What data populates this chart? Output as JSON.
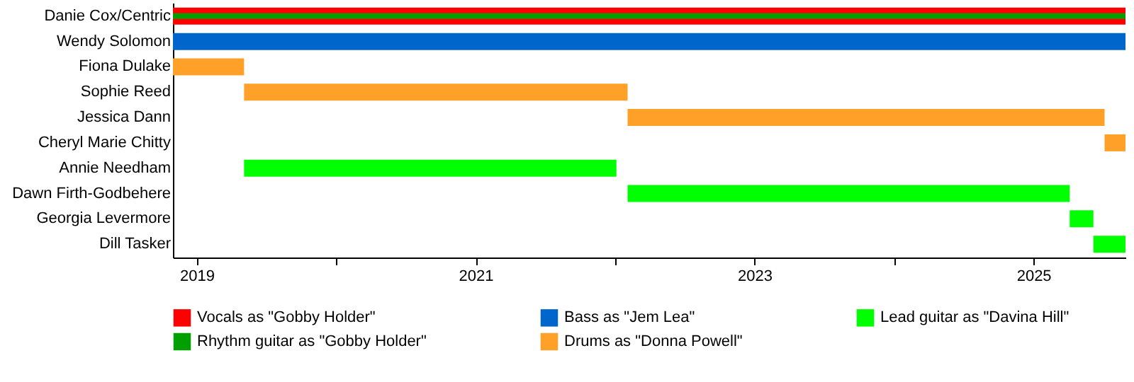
{
  "chart_data": {
    "type": "bar",
    "orientation": "horizontal",
    "legend": "bottom",
    "categories": [
      "Danie Cox/Centric",
      "Wendy Solomon",
      "Fiona Dulake",
      "Sophie Reed",
      "Jessica Dann",
      "Cheryl Marie Chitty",
      "Annie Needham",
      "Dawn Firth-Godbehere",
      "Georgia Levermore",
      "Dill Tasker"
    ],
    "xlim": [
      2018.83,
      2025.66
    ],
    "xticks": [
      2019,
      {
        "value": 2020,
        "label": null
      },
      2021,
      {
        "value": 2022,
        "label": null
      },
      2023,
      {
        "value": 2024,
        "label": null
      },
      2025
    ],
    "series": [
      {
        "name": "Vocals as \"Gobby Holder\"",
        "color": "#ff0000",
        "base": [
          2018.83,
          null,
          null,
          null,
          null,
          null,
          null,
          null,
          null,
          null
        ],
        "values": [
          6.83,
          null,
          null,
          null,
          null,
          null,
          null,
          null,
          null,
          null
        ]
      },
      {
        "name": "Rhythm guitar as \"Gobby Holder\"",
        "color": "#00a000",
        "base": [
          2018.83,
          null,
          null,
          null,
          null,
          null,
          null,
          null,
          null,
          null
        ],
        "values": [
          6.83,
          null,
          null,
          null,
          null,
          null,
          null,
          null,
          null,
          null
        ]
      },
      {
        "name": "Bass as \"Jem Lea\"",
        "color": "#0066cc",
        "base": [
          null,
          2018.83,
          null,
          null,
          null,
          null,
          null,
          null,
          null,
          null
        ],
        "values": [
          null,
          6.83,
          null,
          null,
          null,
          null,
          null,
          null,
          null,
          null
        ]
      },
      {
        "name": "Drums as \"Donna Powell\"",
        "color": "#ffa028",
        "base": [
          null,
          null,
          2018.83,
          2019.34,
          2022.09,
          2025.51,
          null,
          null,
          null,
          null
        ],
        "values": [
          null,
          null,
          0.51,
          2.75,
          3.42,
          0.15,
          null,
          null,
          null,
          null
        ]
      },
      {
        "name": "Lead guitar as \"Davina Hill\"",
        "color": "#00ff00",
        "base": [
          null,
          null,
          null,
          null,
          null,
          null,
          2019.34,
          2022.09,
          2025.26,
          2025.43
        ],
        "values": [
          null,
          null,
          null,
          null,
          null,
          null,
          2.67,
          3.17,
          0.17,
          0.23
        ]
      }
    ]
  }
}
